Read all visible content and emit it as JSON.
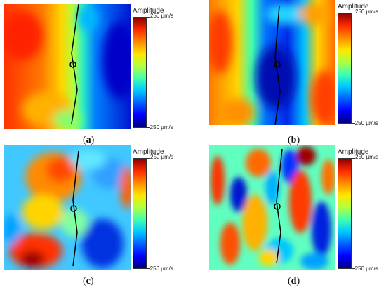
{
  "figure": {
    "colormap": [
      "#00007f",
      "#0000ff",
      "#0060ff",
      "#00c8ff",
      "#40ffb0",
      "#b0ff40",
      "#ffe600",
      "#ff8a00",
      "#ff2a00",
      "#8b0000"
    ],
    "panels": [
      {
        "id": "a",
        "caption_open": "(",
        "caption_letter": "a",
        "caption_close": ")",
        "colorbar": {
          "title": "Amplitude",
          "max_label": "250 µm/s",
          "min_label": "-250 µm/s"
        }
      },
      {
        "id": "b",
        "caption_open": "(",
        "caption_letter": "b",
        "caption_close": ")",
        "colorbar": {
          "title": "Amplitude",
          "max_label": "250 µm/s",
          "min_label": "-250 µm/s"
        }
      },
      {
        "id": "c",
        "caption_open": "(",
        "caption_letter": "c",
        "caption_close": ")",
        "colorbar": {
          "title": "Amplitude",
          "max_label": "250 µm/s",
          "min_label": "-250 µm/s"
        }
      },
      {
        "id": "d",
        "caption_open": "(",
        "caption_letter": "d",
        "caption_close": ")",
        "colorbar": {
          "title": "Amplitude",
          "max_label": "250 µm/s",
          "min_label": "-250 µm/s"
        }
      }
    ]
  }
}
